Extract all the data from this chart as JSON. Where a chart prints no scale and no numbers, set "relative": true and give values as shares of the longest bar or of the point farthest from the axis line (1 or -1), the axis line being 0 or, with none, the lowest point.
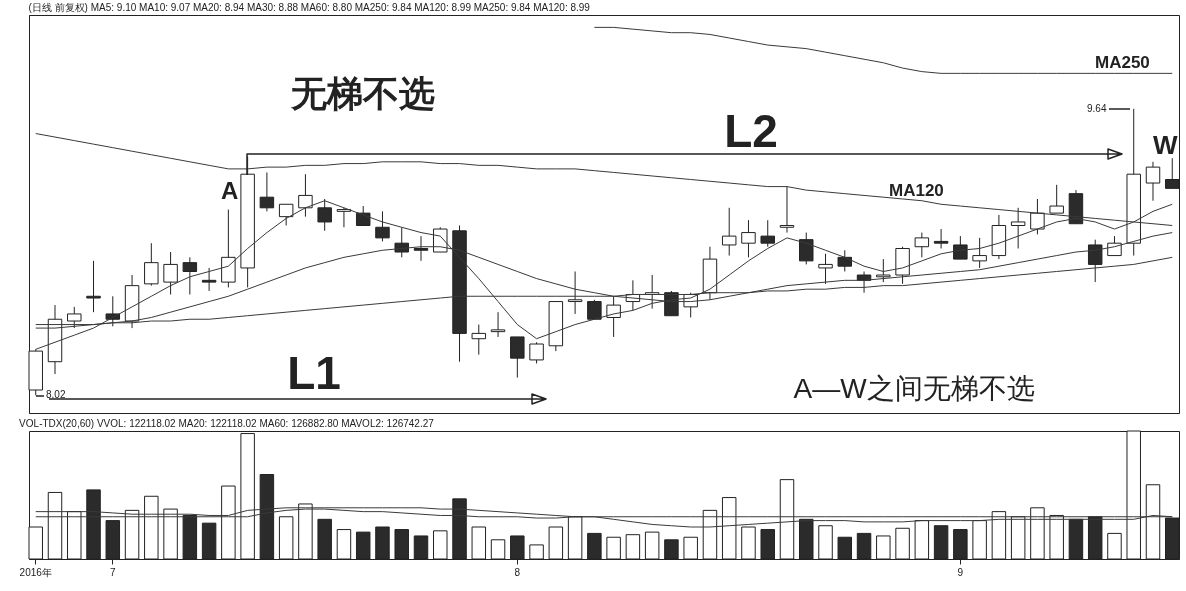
{
  "chart_data": [
    {
      "type": "candlestick",
      "title": "(日线 前复权) MA5: 9.10 MA10: 9.07 MA20: 8.94 MA30: 8.88 MA60: 8.80 MA250: 9.84 MA120: 8.99 MA250: 9.84 MA120: 8.99",
      "categories": [
        null,
        null,
        null,
        null,
        null,
        null,
        null,
        null,
        null,
        null,
        null,
        null,
        null,
        null,
        null,
        null,
        null,
        null,
        null,
        null,
        null,
        null,
        null,
        null,
        null,
        null,
        null,
        null,
        null,
        null,
        null,
        null,
        null,
        null,
        null,
        null,
        null,
        null,
        null,
        null,
        null,
        null,
        null,
        null,
        null,
        null,
        null,
        null,
        null,
        null,
        null,
        null,
        null,
        null,
        null,
        null,
        null,
        null,
        null,
        null
      ],
      "ohlc": [
        [
          8.05,
          8.28,
          8.02,
          8.27
        ],
        [
          8.21,
          8.53,
          8.14,
          8.45
        ],
        [
          8.44,
          8.52,
          8.4,
          8.48
        ],
        [
          8.58,
          8.78,
          8.49,
          8.57
        ],
        [
          8.48,
          8.58,
          8.41,
          8.45
        ],
        [
          8.44,
          8.7,
          8.4,
          8.64
        ],
        [
          8.65,
          8.88,
          8.64,
          8.77
        ],
        [
          8.66,
          8.83,
          8.59,
          8.76
        ],
        [
          8.77,
          8.8,
          8.59,
          8.72
        ],
        [
          8.67,
          8.74,
          8.61,
          8.66
        ],
        [
          8.66,
          9.07,
          8.63,
          8.8
        ],
        [
          8.74,
          9.37,
          8.63,
          9.27
        ],
        [
          9.14,
          9.28,
          9.06,
          9.08
        ],
        [
          9.03,
          9.1,
          8.98,
          9.1
        ],
        [
          9.08,
          9.27,
          9.03,
          9.15
        ],
        [
          9.08,
          9.13,
          8.95,
          9.0
        ],
        [
          9.06,
          9.08,
          8.97,
          9.07
        ],
        [
          9.05,
          9.09,
          8.98,
          8.98
        ],
        [
          8.97,
          9.06,
          8.89,
          8.91
        ],
        [
          8.88,
          8.97,
          8.8,
          8.83
        ],
        [
          8.85,
          8.92,
          8.78,
          8.84
        ],
        [
          8.83,
          8.97,
          8.83,
          8.96
        ],
        [
          8.95,
          8.98,
          8.21,
          8.37
        ],
        [
          8.34,
          8.42,
          8.25,
          8.37
        ],
        [
          8.38,
          8.49,
          8.35,
          8.39
        ],
        [
          8.35,
          8.35,
          8.12,
          8.23
        ],
        [
          8.22,
          8.32,
          8.2,
          8.31
        ],
        [
          8.3,
          8.55,
          8.27,
          8.55
        ],
        [
          8.55,
          8.72,
          8.48,
          8.56
        ],
        [
          8.55,
          8.56,
          8.45,
          8.45
        ],
        [
          8.46,
          8.58,
          8.35,
          8.53
        ],
        [
          8.55,
          8.67,
          8.5,
          8.59
        ],
        [
          8.59,
          8.7,
          8.51,
          8.6
        ],
        [
          8.6,
          8.61,
          8.47,
          8.47
        ],
        [
          8.52,
          8.6,
          8.46,
          8.59
        ],
        [
          8.6,
          8.86,
          8.56,
          8.79
        ],
        [
          8.87,
          9.08,
          8.81,
          8.92
        ],
        [
          8.88,
          9.01,
          8.8,
          8.94
        ],
        [
          8.92,
          9.01,
          8.86,
          8.88
        ],
        [
          8.97,
          9.2,
          8.94,
          8.98
        ],
        [
          8.9,
          8.94,
          8.76,
          8.78
        ],
        [
          8.74,
          8.82,
          8.65,
          8.76
        ],
        [
          8.8,
          8.84,
          8.72,
          8.75
        ],
        [
          8.7,
          8.72,
          8.6,
          8.67
        ],
        [
          8.69,
          8.79,
          8.66,
          8.7
        ],
        [
          8.7,
          8.86,
          8.65,
          8.85
        ],
        [
          8.86,
          8.94,
          8.8,
          8.91
        ],
        [
          8.89,
          8.96,
          8.85,
          8.88
        ],
        [
          8.87,
          8.92,
          8.79,
          8.79
        ],
        [
          8.78,
          8.91,
          8.74,
          8.81
        ],
        [
          8.81,
          9.04,
          8.79,
          8.98
        ],
        [
          8.98,
          9.08,
          8.85,
          9.0
        ],
        [
          8.96,
          9.13,
          8.93,
          9.05
        ],
        [
          9.05,
          9.21,
          9.05,
          9.09
        ],
        [
          9.16,
          9.18,
          8.99,
          8.99
        ],
        [
          8.87,
          8.9,
          8.66,
          8.76
        ],
        [
          8.81,
          8.92,
          8.81,
          8.88
        ],
        [
          8.88,
          9.64,
          8.81,
          9.27
        ],
        [
          9.22,
          9.34,
          9.12,
          9.31
        ],
        [
          9.24,
          9.36,
          9.19,
          9.19
        ]
      ],
      "colors": [
        "#ffffff",
        "#ffffff",
        "#ffffff",
        "#2b2b2b",
        "#2b2b2b",
        "#ffffff",
        "#ffffff",
        "#ffffff",
        "#2b2b2b",
        "#2b2b2b",
        "#ffffff",
        "#ffffff",
        "#2b2b2b",
        "#ffffff",
        "#ffffff",
        "#2b2b2b",
        "#ffffff",
        "#2b2b2b",
        "#2b2b2b",
        "#2b2b2b",
        "#2b2b2b",
        "#ffffff",
        "#2b2b2b",
        "#ffffff",
        "#ffffff",
        "#2b2b2b",
        "#ffffff",
        "#ffffff",
        "#ffffff",
        "#2b2b2b",
        "#ffffff",
        "#ffffff",
        "#ffffff",
        "#2b2b2b",
        "#ffffff",
        "#ffffff",
        "#ffffff",
        "#ffffff",
        "#2b2b2b",
        "#ffffff",
        "#2b2b2b",
        "#ffffff",
        "#2b2b2b",
        "#2b2b2b",
        "#ffffff",
        "#ffffff",
        "#ffffff",
        "#2b2b2b",
        "#2b2b2b",
        "#ffffff",
        "#ffffff",
        "#ffffff",
        "#ffffff",
        "#ffffff",
        "#2b2b2b",
        "#2b2b2b",
        "#ffffff",
        "#ffffff",
        "#ffffff",
        "#2b2b2b"
      ],
      "ylim": [
        7.92,
        10.17
      ],
      "tick_labels": false,
      "series": [
        {
          "type": "line",
          "name": "MA250",
          "color": "#3a3a3a",
          "values": [
            null,
            null,
            null,
            null,
            null,
            null,
            null,
            null,
            null,
            null,
            null,
            null,
            null,
            null,
            null,
            null,
            null,
            null,
            null,
            null,
            null,
            null,
            null,
            null,
            null,
            null,
            null,
            null,
            null,
            10.1,
            10.1,
            10.09,
            10.08,
            10.07,
            10.07,
            10.06,
            10.04,
            10.02,
            10.0,
            9.99,
            9.98,
            9.96,
            9.94,
            9.92,
            9.9,
            9.87,
            9.85,
            9.84,
            9.84,
            9.84,
            9.84,
            9.84,
            9.84,
            9.84,
            9.84,
            9.84,
            9.84,
            9.84,
            9.84,
            9.84
          ]
        },
        {
          "type": "line",
          "name": "MA120",
          "color": "#3a3a3a",
          "values": [
            9.5,
            9.48,
            9.46,
            9.44,
            9.42,
            9.4,
            9.38,
            9.36,
            9.34,
            9.32,
            9.3,
            9.3,
            9.31,
            9.31,
            9.32,
            9.32,
            9.33,
            9.33,
            9.34,
            9.34,
            9.34,
            9.33,
            9.33,
            9.32,
            9.32,
            9.31,
            9.3,
            9.3,
            9.3,
            9.29,
            9.28,
            9.27,
            9.26,
            9.25,
            9.24,
            9.23,
            9.22,
            9.21,
            9.2,
            9.2,
            9.18,
            9.17,
            9.16,
            9.15,
            9.14,
            9.13,
            9.12,
            9.1,
            9.09,
            9.08,
            9.07,
            9.06,
            9.05,
            9.04,
            9.03,
            9.02,
            9.01,
            9.0,
            8.99,
            8.98
          ]
        },
        {
          "type": "line",
          "color": "#3a3a3a",
          "values": [
            8.28,
            8.32,
            8.36,
            8.4,
            8.46,
            8.52,
            8.58,
            8.64,
            8.69,
            8.72,
            8.75,
            8.85,
            8.94,
            9.02,
            9.08,
            9.12,
            9.08,
            9.04,
            9.0,
            8.97,
            8.94,
            8.92,
            8.8,
            8.68,
            8.55,
            8.42,
            8.34,
            8.38,
            8.42,
            8.45,
            8.48,
            8.5,
            8.54,
            8.56,
            8.57,
            8.62,
            8.7,
            8.78,
            8.85,
            8.91,
            8.88,
            8.84,
            8.8,
            8.75,
            8.72,
            8.74,
            8.78,
            8.82,
            8.84,
            8.85,
            8.88,
            8.92,
            8.96,
            9.0,
            9.02,
            9.0,
            8.96,
            9.0,
            9.06,
            9.1
          ]
        },
        {
          "type": "line",
          "color": "#3a3a3a",
          "values": [
            8.4,
            8.4,
            8.41,
            8.42,
            8.43,
            8.44,
            8.46,
            8.49,
            8.52,
            8.55,
            8.58,
            8.62,
            8.66,
            8.7,
            8.74,
            8.77,
            8.8,
            8.82,
            8.84,
            8.85,
            8.86,
            8.86,
            8.84,
            8.8,
            8.76,
            8.72,
            8.68,
            8.65,
            8.62,
            8.6,
            8.58,
            8.57,
            8.56,
            8.55,
            8.55,
            8.56,
            8.58,
            8.6,
            8.62,
            8.64,
            8.65,
            8.66,
            8.67,
            8.67,
            8.68,
            8.69,
            8.7,
            8.71,
            8.72,
            8.73,
            8.75,
            8.77,
            8.79,
            8.81,
            8.83,
            8.84,
            8.86,
            8.89,
            8.92,
            8.94
          ]
        },
        {
          "type": "line",
          "color": "#3a3a3a",
          "values": [
            8.42,
            8.42,
            8.42,
            8.42,
            8.43,
            8.43,
            8.44,
            8.44,
            8.45,
            8.45,
            8.46,
            8.47,
            8.48,
            8.49,
            8.5,
            8.51,
            8.52,
            8.53,
            8.54,
            8.55,
            8.56,
            8.57,
            8.58,
            8.58,
            8.58,
            8.58,
            8.58,
            8.58,
            8.58,
            8.58,
            8.58,
            8.59,
            8.59,
            8.59,
            8.59,
            8.6,
            8.6,
            8.6,
            8.61,
            8.61,
            8.62,
            8.62,
            8.63,
            8.63,
            8.64,
            8.64,
            8.65,
            8.66,
            8.67,
            8.68,
            8.69,
            8.7,
            8.71,
            8.72,
            8.73,
            8.74,
            8.75,
            8.76,
            8.78,
            8.8
          ]
        }
      ],
      "annotations": [
        "无梯不选",
        "A",
        "L1",
        "L2",
        "W",
        "A—W之间无梯不选",
        "9.64",
        "8.02"
      ]
    },
    {
      "type": "bar",
      "relative": true,
      "title": "VOL-TDX(20,60) VVOL: 122118.02 MA20: 122118.02 MA60: 126882.80 MAVOL2: 126742.27",
      "tick_labels": "x",
      "categories": [
        "2016年",
        null,
        null,
        null,
        "7",
        null,
        null,
        null,
        null,
        null,
        null,
        null,
        null,
        null,
        null,
        null,
        null,
        null,
        null,
        null,
        null,
        null,
        null,
        null,
        null,
        "8",
        null,
        null,
        null,
        null,
        null,
        null,
        null,
        null,
        null,
        null,
        null,
        null,
        null,
        null,
        null,
        null,
        null,
        null,
        null,
        null,
        null,
        null,
        "9",
        null,
        null,
        null,
        null,
        null,
        null,
        null,
        null,
        null,
        null,
        null
      ],
      "colors": [
        "#ffffff",
        "#ffffff",
        "#ffffff",
        "#2b2b2b",
        "#2b2b2b",
        "#ffffff",
        "#ffffff",
        "#ffffff",
        "#2b2b2b",
        "#2b2b2b",
        "#ffffff",
        "#ffffff",
        "#2b2b2b",
        "#ffffff",
        "#ffffff",
        "#2b2b2b",
        "#ffffff",
        "#2b2b2b",
        "#2b2b2b",
        "#2b2b2b",
        "#2b2b2b",
        "#ffffff",
        "#2b2b2b",
        "#ffffff",
        "#ffffff",
        "#2b2b2b",
        "#ffffff",
        "#ffffff",
        "#ffffff",
        "#2b2b2b",
        "#ffffff",
        "#ffffff",
        "#ffffff",
        "#2b2b2b",
        "#ffffff",
        "#ffffff",
        "#ffffff",
        "#ffffff",
        "#2b2b2b",
        "#ffffff",
        "#2b2b2b",
        "#ffffff",
        "#2b2b2b",
        "#2b2b2b",
        "#ffffff",
        "#ffffff",
        "#ffffff",
        "#2b2b2b",
        "#2b2b2b",
        "#ffffff",
        "#ffffff",
        "#ffffff",
        "#ffffff",
        "#ffffff",
        "#2b2b2b",
        "#2b2b2b",
        "#ffffff",
        "#ffffff",
        "#ffffff",
        "#2b2b2b"
      ],
      "values": [
        0.25,
        0.52,
        0.37,
        0.54,
        0.3,
        0.38,
        0.49,
        0.39,
        0.34,
        0.28,
        0.57,
        0.98,
        0.66,
        0.33,
        0.43,
        0.31,
        0.23,
        0.21,
        0.25,
        0.23,
        0.18,
        0.22,
        0.47,
        0.25,
        0.15,
        0.18,
        0.11,
        0.25,
        0.33,
        0.2,
        0.17,
        0.19,
        0.21,
        0.15,
        0.17,
        0.38,
        0.48,
        0.25,
        0.23,
        0.62,
        0.31,
        0.26,
        0.17,
        0.2,
        0.18,
        0.24,
        0.3,
        0.26,
        0.23,
        0.3,
        0.37,
        0.33,
        0.4,
        0.34,
        0.31,
        0.33,
        0.2,
        1.0,
        0.58,
        0.32
      ],
      "series": [
        {
          "type": "line",
          "color": "#3a3a3a",
          "values": [
            0.37,
            0.37,
            0.37,
            0.37,
            0.36,
            0.35,
            0.35,
            0.35,
            0.35,
            0.34,
            0.34,
            0.38,
            0.39,
            0.4,
            0.4,
            0.4,
            0.4,
            0.4,
            0.4,
            0.4,
            0.4,
            0.39,
            0.39,
            0.38,
            0.37,
            0.36,
            0.35,
            0.34,
            0.33,
            0.33,
            0.33,
            0.33,
            0.33,
            0.33,
            0.33,
            0.33,
            0.33,
            0.33,
            0.33,
            0.33,
            0.33,
            0.33,
            0.33,
            0.33,
            0.33,
            0.33,
            0.33,
            0.33,
            0.33,
            0.33,
            0.33,
            0.33,
            0.33,
            0.33,
            0.33,
            0.33,
            0.33,
            0.33,
            0.33,
            0.33
          ]
        },
        {
          "type": "line",
          "color": "#3a3a3a",
          "values": [
            0.33,
            0.33,
            0.33,
            0.33,
            0.33,
            0.33,
            0.33,
            0.33,
            0.33,
            0.33,
            0.33,
            0.33,
            0.36,
            0.38,
            0.39,
            0.39,
            0.38,
            0.37,
            0.37,
            0.36,
            0.35,
            0.34,
            0.34,
            0.33,
            0.33,
            0.33,
            0.32,
            0.32,
            0.33,
            0.33,
            0.31,
            0.29,
            0.27,
            0.26,
            0.25,
            0.25,
            0.26,
            0.27,
            0.28,
            0.29,
            0.3,
            0.3,
            0.3,
            0.29,
            0.29,
            0.29,
            0.3,
            0.3,
            0.3,
            0.3,
            0.31,
            0.31,
            0.31,
            0.31,
            0.31,
            0.31,
            0.31,
            0.31,
            0.34,
            0.33
          ]
        }
      ]
    }
  ]
}
